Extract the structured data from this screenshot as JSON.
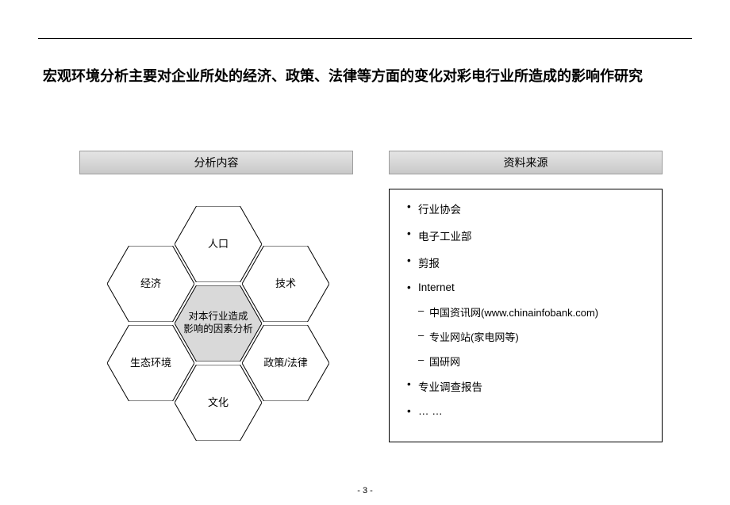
{
  "title": "宏观环境分析主要对企业所处的经济、政策、法律等方面的变化对彩电行业所造成的影响作研究",
  "headers": {
    "analysis": "分析内容",
    "sources": "资料来源"
  },
  "hex": {
    "center": "对本行业造成\n影响的因素分析",
    "top": "人口",
    "topRight": "技术",
    "bottomRight": "政策/法律",
    "bottom": "文化",
    "bottomLeft": "生态环境",
    "topLeft": "经济",
    "style": {
      "outer_fill": "#ffffff",
      "center_fill": "#d9d9d9",
      "stroke": "#000000",
      "stroke_width": 1,
      "hex_w": 110,
      "hex_h": 96,
      "font_size": 13
    }
  },
  "sources": {
    "items": [
      {
        "level": 1,
        "text": "行业协会"
      },
      {
        "level": 1,
        "text": "电子工业部"
      },
      {
        "level": 1,
        "text": "剪报"
      },
      {
        "level": 1,
        "text": "Internet"
      },
      {
        "level": 2,
        "text": "中国资讯网(www.chinainfobank.com)"
      },
      {
        "level": 2,
        "text": "专业网站(家电网等)"
      },
      {
        "level": 2,
        "text": "国研网"
      },
      {
        "level": 1,
        "text": "专业调查报告"
      },
      {
        "level": 1,
        "text": "… …"
      }
    ]
  },
  "colors": {
    "header_grad_top": "#e4e4e4",
    "header_grad_bot": "#c9c9c9",
    "header_border": "#9e9e9e",
    "rule": "#000000",
    "box_border": "#000000",
    "background": "#ffffff"
  },
  "page_number": "- 3 -"
}
